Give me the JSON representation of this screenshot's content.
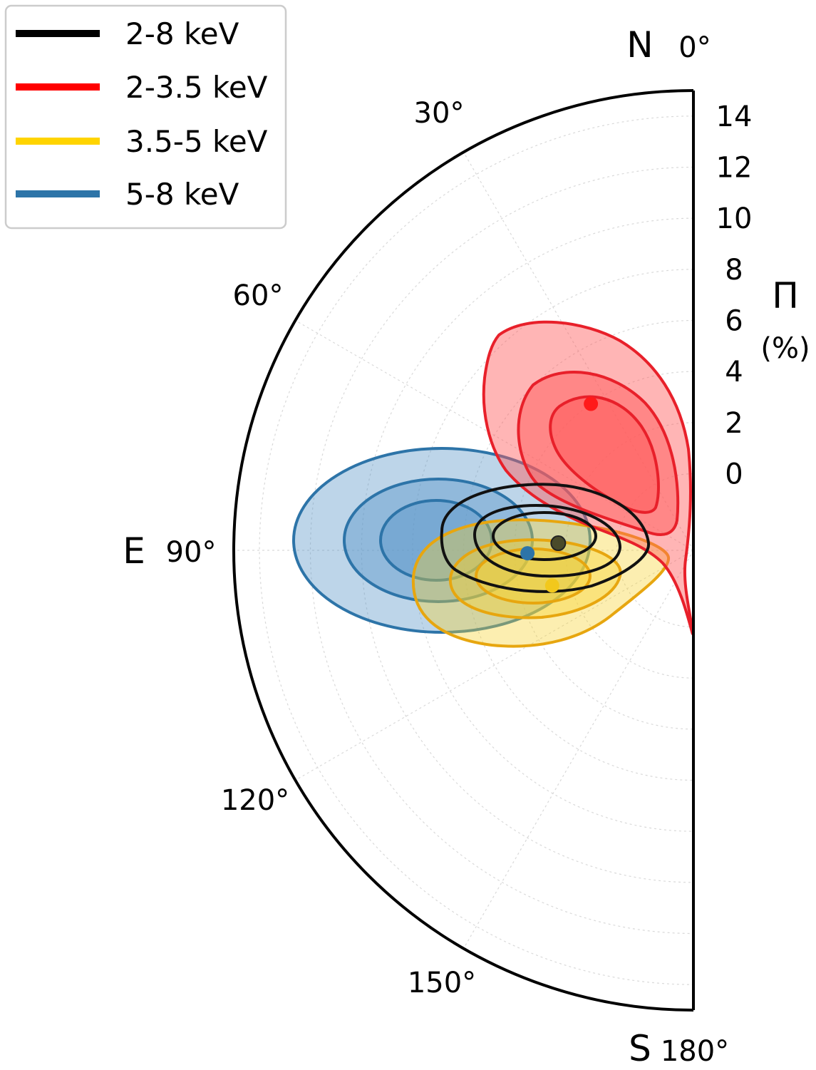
{
  "chart_data": {
    "type": "polar-contour",
    "description_axes": {
      "radial_label_line1": "Π",
      "radial_label_line2": "(%)",
      "radial_ticks": [
        "0",
        "2",
        "4",
        "6",
        "8",
        "10",
        "12",
        "14"
      ],
      "radial_range": [
        -3,
        15
      ],
      "angular_range_deg": [
        0,
        180
      ],
      "angular_tick_labels": [
        "30°",
        "60°",
        "120°",
        "150°"
      ],
      "direction_labels": {
        "north": "N",
        "north_angle": "0°",
        "east": "E",
        "east_angle": "90°",
        "south": "S",
        "south_angle": "180°"
      },
      "grid": true
    },
    "legend": {
      "placement": "top-left",
      "entries": [
        "2-8 keV",
        "2-3.5 keV",
        "3.5-5 keV",
        "5-8 keV"
      ]
    },
    "series": [
      {
        "name": "2-8 keV",
        "color": "#000000",
        "fill": "none",
        "best_fit": {
          "pd_percent": 2.3,
          "angle_deg": 87
        },
        "contour_levels": 3
      },
      {
        "name": "2-3.5 keV",
        "color": "#e8202a",
        "fill": "#ff5a5a",
        "best_fit": {
          "pd_percent": 4.0,
          "angle_deg": 35
        },
        "contour_levels": 3
      },
      {
        "name": "3.5-5 keV",
        "color": "#e7a60f",
        "fill": "#f8d12f",
        "best_fit": {
          "pd_percent": 2.7,
          "angle_deg": 104
        },
        "contour_levels": 3
      },
      {
        "name": "5-8 keV",
        "color": "#2d74a8",
        "fill": "#5b97c9",
        "best_fit": {
          "pd_percent": 3.5,
          "angle_deg": 91
        },
        "contour_levels": 3
      }
    ]
  }
}
